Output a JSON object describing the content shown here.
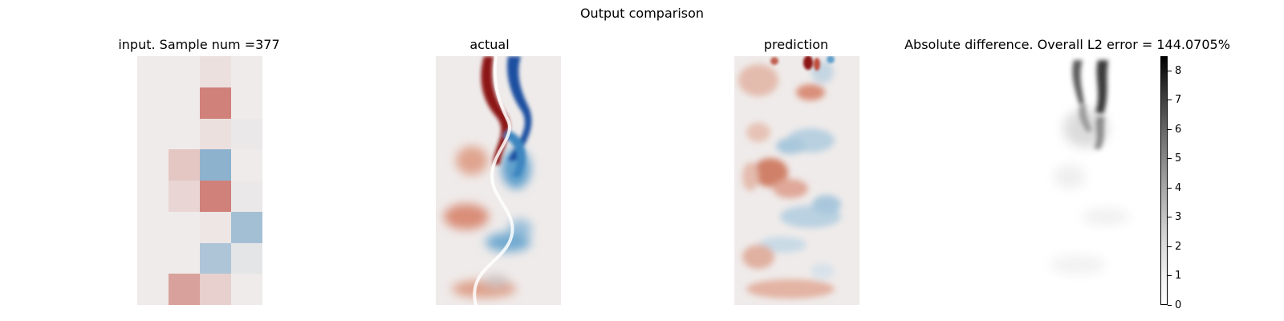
{
  "chart_data": [
    {
      "type": "heatmap",
      "title": "input. Sample num =377",
      "grid": {
        "rows": 8,
        "cols": 4
      },
      "values": [
        [
          0.0,
          0.0,
          0.1,
          0.0
        ],
        [
          0.0,
          0.0,
          1.0,
          0.0
        ],
        [
          0.0,
          0.0,
          0.1,
          -0.05
        ],
        [
          0.0,
          0.35,
          -0.9,
          0.0
        ],
        [
          0.0,
          0.2,
          1.0,
          -0.05
        ],
        [
          0.0,
          0.0,
          0.05,
          -0.7
        ],
        [
          0.0,
          0.0,
          -0.6,
          -0.1
        ],
        [
          0.0,
          0.7,
          0.25,
          0.0
        ]
      ],
      "colormap": {
        "negative": "#2a78b2",
        "zero": "#efebea",
        "positive": "#b42a1e"
      }
    },
    {
      "type": "heatmap",
      "title": "actual",
      "description_field": "vortex street field"
    },
    {
      "type": "heatmap",
      "title": "prediction"
    },
    {
      "type": "heatmap",
      "title": "Absolute difference. Overall L2 error = 144.0705%",
      "colorbar": {
        "min": 0,
        "max": 8.5,
        "ticks": [
          0,
          1,
          2,
          3,
          4,
          5,
          6,
          7,
          8
        ]
      }
    }
  ],
  "suptitle": "Output comparison",
  "colors": {
    "red": "#b42a1e",
    "blue": "#2a78b2",
    "neutral": "#efebea"
  }
}
